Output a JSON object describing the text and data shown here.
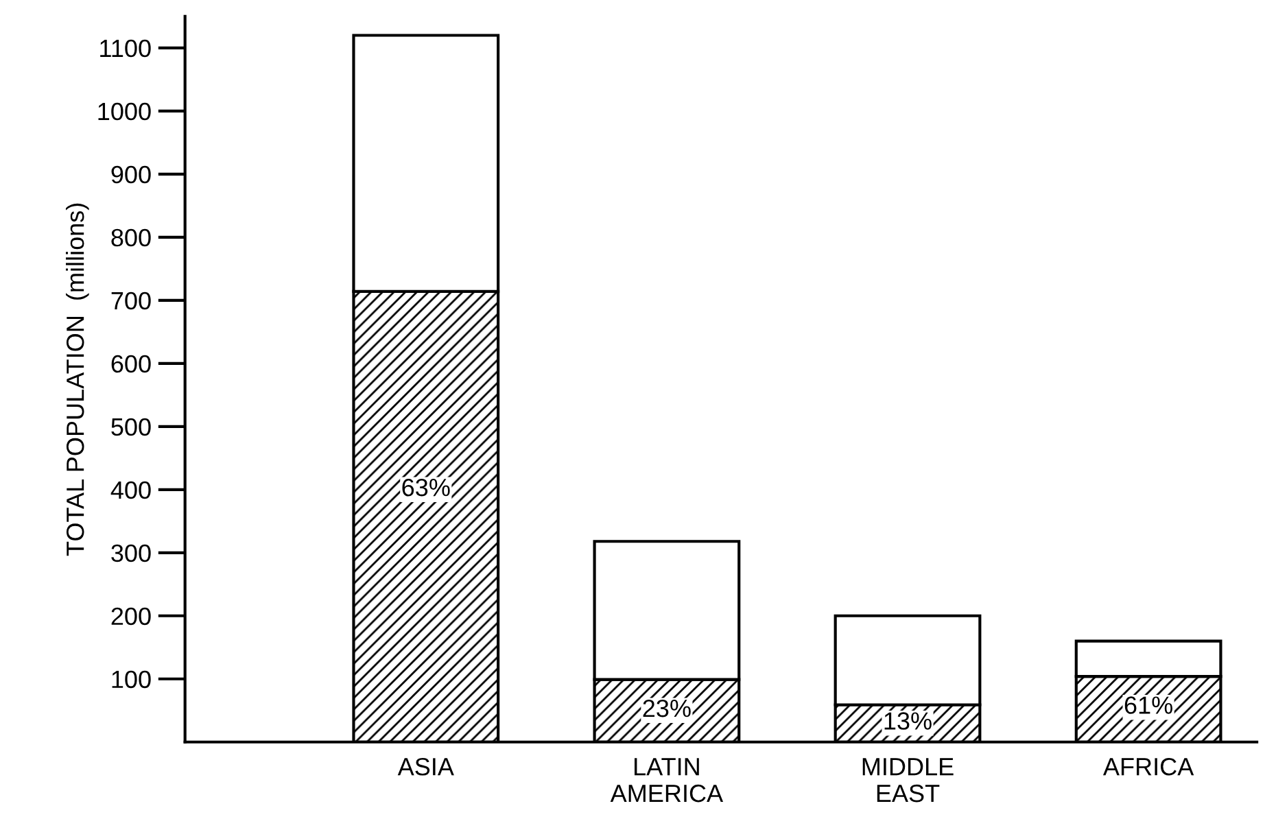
{
  "chart_data": {
    "type": "bar",
    "ylabel": "TOTAL POPULATION  (millions)",
    "categories": [
      "ASIA",
      "LATIN\nAMERICA",
      "MIDDLE\nEAST",
      "AFRICA"
    ],
    "stacked": true,
    "series": [
      {
        "color": "#000000",
        "values": [
          714,
          99,
          59,
          104
        ]
      },
      {
        "color": "#ffffff",
        "values": [
          406,
          219,
          141,
          56
        ]
      }
    ],
    "annotations": [
      {
        "text": "63%",
        "x": "ASIA",
        "y": 400
      },
      {
        "text": "23%",
        "x": "LATIN\nAMERICA",
        "y": 50
      },
      {
        "text": "13%",
        "x": "MIDDLE\nEAST",
        "y": 30
      },
      {
        "text": "61%",
        "x": "AFRICA",
        "y": 55
      }
    ],
    "ylim": [
      0,
      1150
    ],
    "yticks": [
      100,
      200,
      300,
      400,
      500,
      600,
      700,
      800,
      900,
      1000,
      1100
    ],
    "grid": false
  }
}
